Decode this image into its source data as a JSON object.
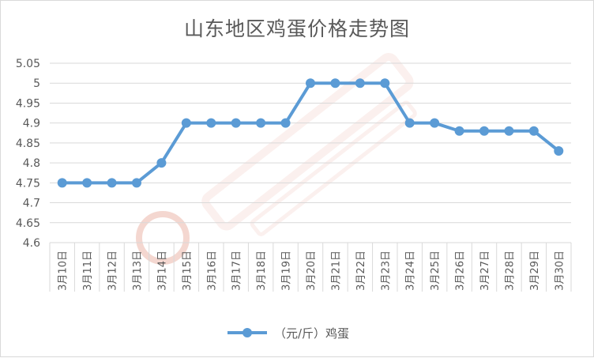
{
  "chart_data": {
    "type": "line",
    "title": "山东地区鸡蛋价格走势图",
    "xlabel": "",
    "ylabel": "",
    "categories": [
      "3月10日",
      "3月11日",
      "3月12日",
      "3月13日",
      "3月14日",
      "3月15日",
      "3月16日",
      "3月17日",
      "3月18日",
      "3月19日",
      "3月20日",
      "3月21日",
      "3月22日",
      "3月23日",
      "3月24日",
      "3月25日",
      "3月26日",
      "3月27日",
      "3月28日",
      "3月29日",
      "3月30日"
    ],
    "series": [
      {
        "name": "（元/斤）鸡蛋",
        "values": [
          4.75,
          4.75,
          4.75,
          4.75,
          4.8,
          4.9,
          4.9,
          4.9,
          4.9,
          4.9,
          5,
          5,
          5,
          5,
          4.9,
          4.9,
          4.88,
          4.88,
          4.88,
          4.88,
          4.83
        ],
        "color": "#5b9bd5"
      }
    ],
    "ylim": [
      4.6,
      5.05
    ],
    "yticks": [
      "4.6",
      "4.65",
      "4.7",
      "4.75",
      "4.8",
      "4.85",
      "4.9",
      "4.95",
      "5",
      "5.05"
    ],
    "grid": true,
    "legend_position": "bottom"
  },
  "colors": {
    "line": "#5b9bd5",
    "grid": "#d9d9d9",
    "text": "#595959",
    "watermark": "#f4d7d0"
  }
}
